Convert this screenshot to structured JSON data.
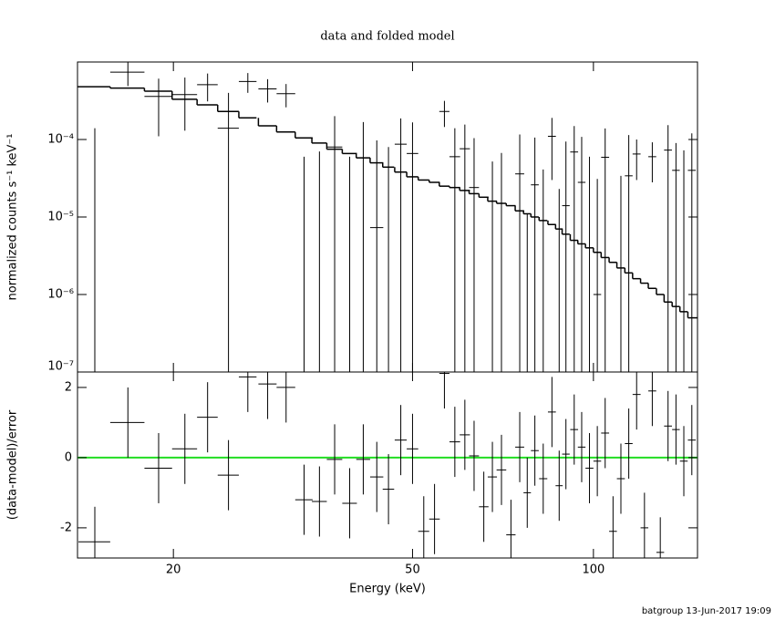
{
  "chart_data": [
    {
      "type": "errorbar",
      "title": "data and folded model",
      "y_label": "normalized counts s⁻¹ keV⁻¹",
      "log_y": true,
      "ylim": [
        1e-07,
        0.001
      ],
      "yticks": [
        {
          "value": 1e-07,
          "label": "10⁻⁷"
        },
        {
          "value": 1e-06,
          "label": "10⁻⁶"
        },
        {
          "value": 1e-05,
          "label": "10⁻⁵"
        },
        {
          "value": 0.0001,
          "label": "10⁻⁴"
        }
      ],
      "color": "#000000",
      "model_color": "#000000",
      "x": [
        14.8,
        16.8,
        18.9,
        20.9,
        22.8,
        24.7,
        26.6,
        28.7,
        30.8,
        33.0,
        35.0,
        37.1,
        39.3,
        41.4,
        43.6,
        45.6,
        47.8,
        50.0,
        52.2,
        54.4,
        56.5,
        58.8,
        61.1,
        63.3,
        65.7,
        67.9,
        70.3,
        72.9,
        75.4,
        77.6,
        79.9,
        82.5,
        85.3,
        87.7,
        90.0,
        92.9,
        95.6,
        98.5,
        101.5,
        104.6,
        107.8,
        111.1,
        114.5,
        118.0,
        121.6,
        125.3,
        129.2,
        133.1,
        137.2,
        141.4,
        145.8
      ],
      "x_err": [
        0.9,
        1.1,
        1.0,
        1.0,
        0.9,
        1.0,
        0.9,
        1.0,
        1.1,
        1.1,
        1.0,
        1.1,
        1.1,
        1.1,
        1.1,
        1.0,
        1.1,
        1.1,
        1.1,
        1.1,
        1.1,
        1.2,
        1.2,
        1.2,
        1.2,
        1.2,
        1.3,
        1.3,
        1.3,
        1.1,
        1.2,
        1.3,
        1.3,
        1.2,
        1.3,
        1.4,
        1.4,
        1.5,
        1.5,
        1.6,
        1.6,
        1.7,
        1.7,
        1.8,
        1.8,
        1.9,
        1.9,
        2.0,
        2.0,
        2.1,
        2.2
      ],
      "values": [
        -0.0001,
        0.00074,
        0.00036,
        0.00038,
        0.00051,
        0.00014,
        0.00056,
        0.00045,
        0.00039,
        -0.00016,
        -0.00012,
        8e-05,
        -0.0001,
        5.8e-05,
        7.3e-06,
        -4e-05,
        8.7e-05,
        6.6e-05,
        -0.00014,
        -0.00011,
        0.00023,
        6e-05,
        7.6e-05,
        2.4e-05,
        -9.4e-05,
        -2.8e-05,
        -1.3e-05,
        -0.00016,
        3.6e-05,
        -6.9e-05,
        2.6e-05,
        -3.9e-05,
        0.00011,
        -5.7e-05,
        1.4e-05,
        6.9e-05,
        2.8e-05,
        -2e-05,
        1e-06,
        5.9e-05,
        -0.00017,
        -4.6e-05,
        3.4e-05,
        6.5e-05,
        -0.00016,
        6e-05,
        -0.00021,
        7.3e-05,
        4e-05,
        -7.4e-06,
        4e-05
      ],
      "errors": [
        0.00024,
        0.00025,
        0.00025,
        0.00025,
        0.0002,
        0.00026,
        0.00016,
        0.00015,
        0.00013,
        0.00022,
        0.00019,
        0.00012,
        0.00016,
        0.00011,
        9e-05,
        0.00012,
        0.0001,
        0.0001,
        8e-05,
        8e-05,
        8.5e-05,
        8e-05,
        8e-05,
        8e-05,
        8e-05,
        8e-05,
        8e-05,
        8e-05,
        8e-05,
        8e-05,
        8e-05,
        8e-05,
        8e-05,
        8e-05,
        8e-05,
        8e-05,
        8e-05,
        8e-05,
        3e-05,
        8e-05,
        8e-05,
        8e-05,
        8e-05,
        3.5e-05,
        8e-05,
        3.2e-05,
        8e-05,
        8e-05,
        5e-05,
        8e-05,
        8e-05
      ],
      "model": [
        0.00048,
        0.00046,
        0.00042,
        0.00033,
        0.00028,
        0.00023,
        0.00019,
        0.00015,
        0.000125,
        0.000105,
        9e-05,
        7.5e-05,
        6.6e-05,
        5.8e-05,
        5e-05,
        4.4e-05,
        3.8e-05,
        3.3e-05,
        3e-05,
        2.8e-05,
        2.5e-05,
        2.4e-05,
        2.2e-05,
        2e-05,
        1.8e-05,
        1.6e-05,
        1.5e-05,
        1.4e-05,
        1.2e-05,
        1.1e-05,
        1e-05,
        9e-06,
        8e-06,
        7e-06,
        6e-06,
        5e-06,
        4.5e-06,
        4e-06,
        3.5e-06,
        3e-06,
        2.6e-06,
        2.2e-06,
        1.9e-06,
        1.6e-06,
        1.4e-06,
        1.2e-06,
        1e-06,
        8e-07,
        7e-07,
        6e-07,
        5e-07
      ]
    },
    {
      "type": "residual",
      "y_label": "(data-model)/error",
      "x_label": "Energy (keV)",
      "xlim": [
        13.85,
        149
      ],
      "xticks": [
        20,
        50,
        100
      ],
      "log_x": true,
      "ylim": [
        -2.86,
        2.44
      ],
      "yticks": [
        -2,
        0,
        2
      ],
      "color": "#000000",
      "ref_line": {
        "value": 0,
        "color": "#22dd22"
      },
      "values": [
        -2.4,
        1.0,
        -0.3,
        0.25,
        1.15,
        -0.5,
        2.3,
        2.1,
        2.0,
        -1.2,
        -1.25,
        -0.05,
        -1.3,
        -0.05,
        -0.55,
        -0.9,
        0.5,
        0.25,
        -2.1,
        -1.75,
        2.4,
        0.45,
        0.65,
        0.05,
        -1.4,
        -0.55,
        -0.35,
        -2.2,
        0.3,
        -1.0,
        0.2,
        -0.6,
        1.3,
        -0.8,
        0.1,
        0.8,
        0.3,
        -0.3,
        -0.1,
        0.7,
        -2.1,
        -0.6,
        0.4,
        1.8,
        -2.0,
        1.9,
        -2.7,
        0.9,
        0.8,
        -0.1,
        0.5
      ],
      "errors": [
        1,
        1,
        1,
        1,
        1,
        1,
        1,
        1,
        1,
        1,
        1,
        1,
        1,
        1,
        1,
        1,
        1,
        1,
        1,
        1,
        1,
        1,
        1,
        1,
        1,
        1,
        1,
        1,
        1,
        1,
        1,
        1,
        1,
        1,
        1,
        1,
        1,
        1,
        1,
        1,
        1,
        1,
        1,
        1,
        1,
        1,
        1,
        1,
        1,
        1,
        1
      ]
    }
  ],
  "footer": "batgroup 13-Jun-2017 19:09"
}
